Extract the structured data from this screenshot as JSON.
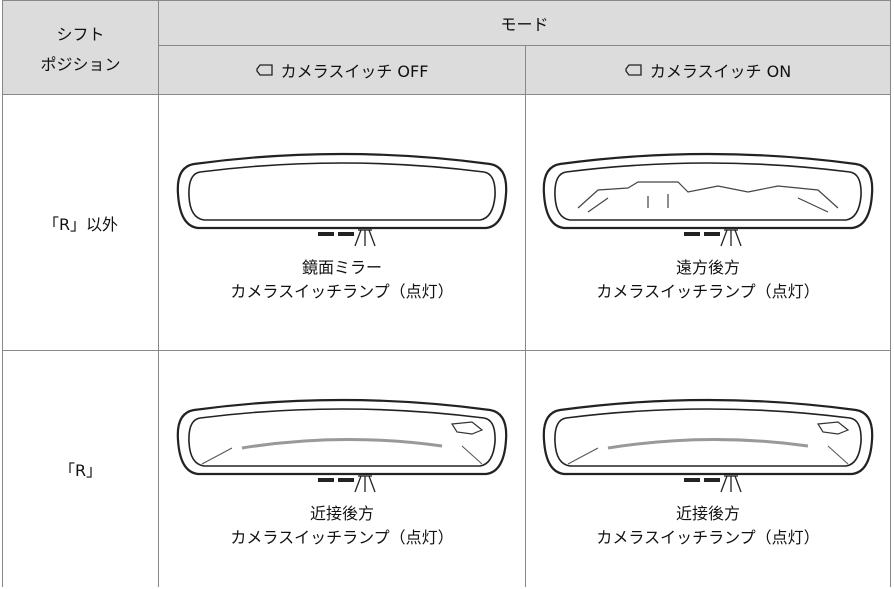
{
  "table": {
    "header": {
      "shift_position": [
        "シフト",
        "ポジション"
      ],
      "mode": "モード",
      "columns": [
        "カメラスイッチ OFF",
        "カメラスイッチ ON"
      ]
    },
    "rows": [
      {
        "shift": "「R」以外",
        "cells": [
          [
            "鏡面ミラー",
            "カメラスイッチランプ（点灯）"
          ],
          [
            "遠方後方",
            "カメラスイッチランプ（点灯）"
          ]
        ]
      },
      {
        "shift": "「R」",
        "cells": [
          [
            "近接後方",
            "カメラスイッチランプ（点灯）"
          ],
          [
            "近接後方",
            "カメラスイッチランプ（点灯）"
          ]
        ]
      }
    ]
  }
}
